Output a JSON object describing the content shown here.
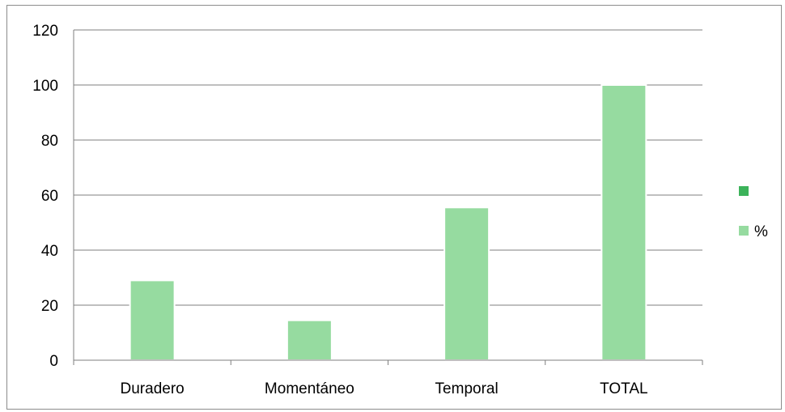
{
  "chart_data": {
    "type": "bar",
    "title": "",
    "xlabel": "",
    "ylabel": "",
    "categories": [
      "Duradero",
      "Momentáneo",
      "Temporal",
      "TOTAL"
    ],
    "series": [
      {
        "name": "",
        "color": "#3cb35a",
        "values": [
          0,
          0,
          0,
          0
        ]
      },
      {
        "name": "%",
        "color": "#96dba0",
        "values": [
          29,
          14.5,
          55.5,
          100
        ]
      }
    ],
    "ylim": [
      0,
      120
    ],
    "yticks": [
      0,
      20,
      40,
      60,
      80,
      100,
      120
    ],
    "grid": true,
    "legend_position": "right"
  }
}
